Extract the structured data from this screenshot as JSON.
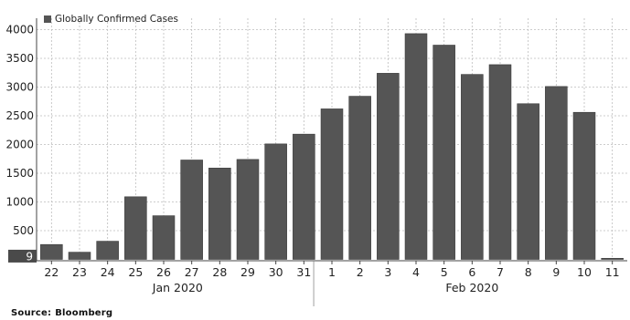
{
  "chart_data": {
    "type": "bar",
    "legend": {
      "label": "Globally Confirmed Cases",
      "position": "top-left"
    },
    "x": [
      "22",
      "23",
      "24",
      "25",
      "26",
      "27",
      "28",
      "29",
      "30",
      "31",
      "1",
      "2",
      "3",
      "4",
      "5",
      "6",
      "7",
      "8",
      "9",
      "10",
      "11"
    ],
    "months": [
      {
        "label": "Jan 2020",
        "start": 0,
        "end": 9
      },
      {
        "label": "Feb 2020",
        "start": 10,
        "end": 20
      }
    ],
    "series": [
      {
        "name": "Globally Confirmed Cases",
        "values": [
          259,
          125,
          316,
          1090,
          760,
          1730,
          1590,
          1740,
          2010,
          2180,
          2620,
          2840,
          3240,
          3930,
          3730,
          3220,
          3390,
          2710,
          3010,
          2560,
          9
        ]
      }
    ],
    "ylim": [
      0,
      4000
    ],
    "yticks": [
      500,
      1000,
      1500,
      2000,
      2500,
      3000,
      3500,
      4000
    ],
    "last_value_label": "9",
    "grid": true,
    "bar_color": "#555555",
    "grid_color": "#bdbdbd"
  },
  "source": {
    "label": "Source:",
    "value": "Bloomberg"
  }
}
